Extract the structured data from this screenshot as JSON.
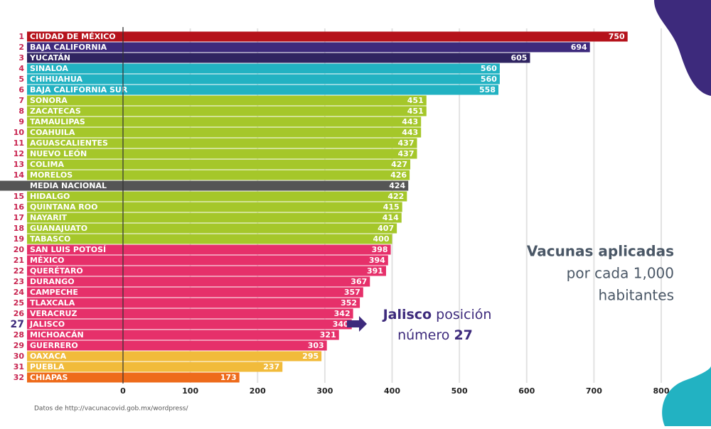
{
  "chart_data": {
    "type": "bar",
    "orientation": "horizontal",
    "categories": [
      "CIUDAD DE MÉXICO",
      "BAJA CALIFORNIA",
      "YUCATÁN",
      "SINALOA",
      "CHIHUAHUA",
      "BAJA CALIFORNIA SUR",
      "SONORA",
      "ZACATECAS",
      "TAMAULIPAS",
      "COAHUILA",
      "AGUASCALIENTES",
      "NUEVO LEÓN",
      "COLIMA",
      "MORELOS",
      "MEDIA NACIONAL",
      "HIDALGO",
      "QUINTANA ROO",
      "NAYARIT",
      "GUANAJUATO",
      "TABASCO",
      "SAN LUIS POTOSÍ",
      "MÉXICO",
      "QUERÉTARO",
      "DURANGO",
      "CAMPECHE",
      "TLAXCALA",
      "VERACRUZ",
      "JALISCO",
      "MICHOACÁN",
      "GUERRERO",
      "OAXACA",
      "PUEBLA",
      "CHIAPAS"
    ],
    "ranks": [
      1,
      2,
      3,
      4,
      5,
      6,
      7,
      8,
      9,
      10,
      11,
      12,
      13,
      14,
      null,
      15,
      16,
      17,
      18,
      19,
      20,
      21,
      22,
      23,
      24,
      25,
      26,
      27,
      28,
      29,
      30,
      31,
      32
    ],
    "values": [
      750,
      694,
      605,
      560,
      560,
      558,
      451,
      451,
      443,
      443,
      437,
      437,
      427,
      426,
      424,
      422,
      415,
      414,
      407,
      400,
      398,
      394,
      391,
      367,
      357,
      352,
      342,
      340,
      321,
      303,
      295,
      237,
      173
    ],
    "colors": [
      "#b5121b",
      "#3d2a7c",
      "#2f2461",
      "#22b2c2",
      "#22b2c2",
      "#22b2c2",
      "#a5c72a",
      "#a5c72a",
      "#a5c72a",
      "#a5c72a",
      "#a5c72a",
      "#a5c72a",
      "#a5c72a",
      "#a5c72a",
      "#555555",
      "#a5c72a",
      "#a5c72a",
      "#a5c72a",
      "#a5c72a",
      "#a5c72a",
      "#e6306a",
      "#e6306a",
      "#e6306a",
      "#e6306a",
      "#e6306a",
      "#e6306a",
      "#e6306a",
      "#e6306a",
      "#e6306a",
      "#e6306a",
      "#f1bb3b",
      "#f1bb3b",
      "#ee6b1b"
    ],
    "highlight_rank": 27,
    "xlim": [
      0,
      800
    ],
    "xticks": [
      0,
      100,
      200,
      300,
      400,
      500,
      600,
      700,
      800
    ],
    "grid": true,
    "title": "Vacunas aplicadas",
    "subtitle": [
      "por cada 1,000",
      "habitantes"
    ],
    "annotation": {
      "name": "Jalisco",
      "text": "posición",
      "text2": "número",
      "rank": "27"
    },
    "source": "Datos de http://vacunacovid.gob.mx/wordpress/"
  }
}
